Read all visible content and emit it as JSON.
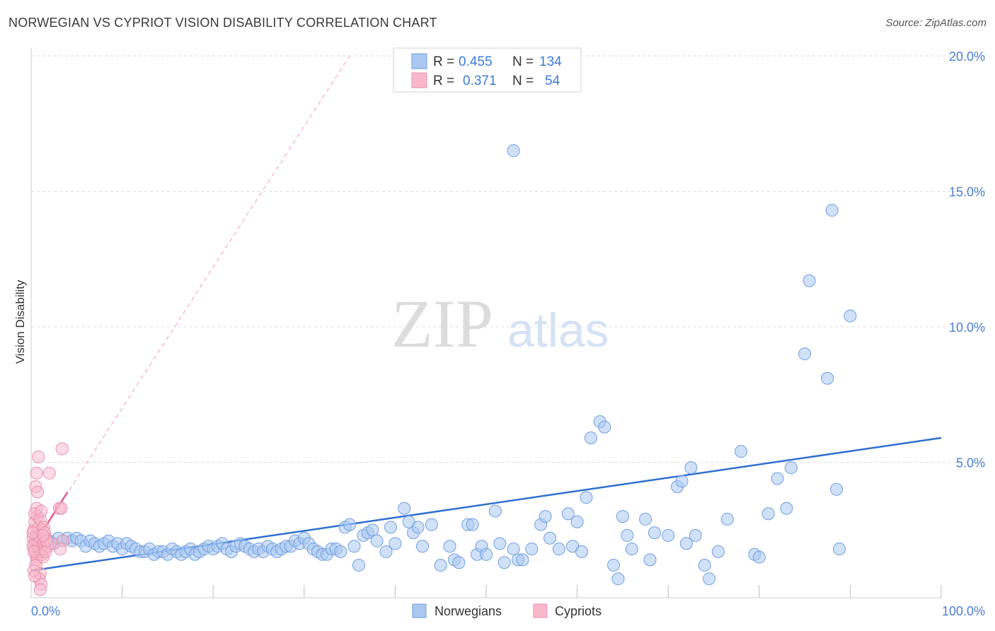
{
  "title": "NORWEGIAN VS CYPRIOT VISION DISABILITY CORRELATION CHART",
  "source": "Source: ZipAtlas.com",
  "watermark": {
    "part1": "ZIP",
    "part2": "atlas"
  },
  "colors": {
    "blue": "#4a84d8",
    "blue_fill": "#aac8f0",
    "pink": "#e8709a",
    "pink_fill": "#f7b8cc",
    "grid": "#dddddd",
    "tick_text": "#4a7fd4"
  },
  "legend": {
    "rows": [
      {
        "r_label": "R =",
        "r_value": "0.455",
        "n_label": "N =",
        "n_value": "134",
        "series": "Norwegians"
      },
      {
        "r_label": "R =",
        "r_value": "0.371",
        "n_label": "N =",
        "n_value": "54",
        "series": "Cypriots"
      }
    ]
  },
  "chart_data": {
    "type": "scatter",
    "title": "NORWEGIAN VS CYPRIOT VISION DISABILITY CORRELATION CHART",
    "xlabel": "",
    "ylabel": "Vision Disability",
    "xlim": [
      0,
      100
    ],
    "ylim": [
      0,
      20
    ],
    "x_tick_labels": [
      "0.0%",
      "100.0%"
    ],
    "y_ticks": [
      5,
      10,
      15,
      20
    ],
    "y_tick_labels": [
      "5.0%",
      "10.0%",
      "15.0%",
      "20.0%"
    ],
    "legend_position": "bottom",
    "series": [
      {
        "name": "Norwegians",
        "color": "#4a84d8",
        "trend": {
          "x": [
            0,
            100
          ],
          "y": [
            1.0,
            5.9
          ]
        },
        "points": [
          [
            0.6,
            2.3
          ],
          [
            0.8,
            2.2
          ],
          [
            1.2,
            2.1
          ],
          [
            1.5,
            2.0
          ],
          [
            2.0,
            2.1
          ],
          [
            2.5,
            2.0
          ],
          [
            3.0,
            2.2
          ],
          [
            3.5,
            2.1
          ],
          [
            4.0,
            2.2
          ],
          [
            4.5,
            2.1
          ],
          [
            5.0,
            2.2
          ],
          [
            5.5,
            2.1
          ],
          [
            6.0,
            1.9
          ],
          [
            6.5,
            2.1
          ],
          [
            7.0,
            2.0
          ],
          [
            7.5,
            1.9
          ],
          [
            8.0,
            2.0
          ],
          [
            8.5,
            2.1
          ],
          [
            9.0,
            1.9
          ],
          [
            9.5,
            2.0
          ],
          [
            10.0,
            1.8
          ],
          [
            10.5,
            2.0
          ],
          [
            11.0,
            1.9
          ],
          [
            11.5,
            1.8
          ],
          [
            12.0,
            1.7
          ],
          [
            12.5,
            1.7
          ],
          [
            13.0,
            1.8
          ],
          [
            13.5,
            1.6
          ],
          [
            14.0,
            1.7
          ],
          [
            14.5,
            1.7
          ],
          [
            15.0,
            1.6
          ],
          [
            15.5,
            1.8
          ],
          [
            16.0,
            1.7
          ],
          [
            16.5,
            1.6
          ],
          [
            17.0,
            1.7
          ],
          [
            17.5,
            1.8
          ],
          [
            18.0,
            1.6
          ],
          [
            18.5,
            1.7
          ],
          [
            19.0,
            1.8
          ],
          [
            19.5,
            1.9
          ],
          [
            20.0,
            1.8
          ],
          [
            20.5,
            1.9
          ],
          [
            21.0,
            2.0
          ],
          [
            21.5,
            1.8
          ],
          [
            22.0,
            1.7
          ],
          [
            22.5,
            1.9
          ],
          [
            23.0,
            2.0
          ],
          [
            23.5,
            1.9
          ],
          [
            24.0,
            1.8
          ],
          [
            24.5,
            1.7
          ],
          [
            25.0,
            1.8
          ],
          [
            25.5,
            1.7
          ],
          [
            26.0,
            1.9
          ],
          [
            26.5,
            1.8
          ],
          [
            27.0,
            1.7
          ],
          [
            27.5,
            1.8
          ],
          [
            28.0,
            1.9
          ],
          [
            28.5,
            1.9
          ],
          [
            29.0,
            2.1
          ],
          [
            29.5,
            2.0
          ],
          [
            30.0,
            2.2
          ],
          [
            30.5,
            2.0
          ],
          [
            31.0,
            1.8
          ],
          [
            31.5,
            1.7
          ],
          [
            32.0,
            1.6
          ],
          [
            32.5,
            1.6
          ],
          [
            33.0,
            1.8
          ],
          [
            33.5,
            1.8
          ],
          [
            34.0,
            1.7
          ],
          [
            34.5,
            2.6
          ],
          [
            35.0,
            2.7
          ],
          [
            35.5,
            1.9
          ],
          [
            36.0,
            1.2
          ],
          [
            36.5,
            2.3
          ],
          [
            37.0,
            2.4
          ],
          [
            37.5,
            2.5
          ],
          [
            38.0,
            2.1
          ],
          [
            39.0,
            1.7
          ],
          [
            39.5,
            2.6
          ],
          [
            40.0,
            2.0
          ],
          [
            41.0,
            3.3
          ],
          [
            41.5,
            2.8
          ],
          [
            42.0,
            2.4
          ],
          [
            42.5,
            2.6
          ],
          [
            43.0,
            1.9
          ],
          [
            44.0,
            2.7
          ],
          [
            45.0,
            1.2
          ],
          [
            46.0,
            1.9
          ],
          [
            46.5,
            1.4
          ],
          [
            47.0,
            1.3
          ],
          [
            48.0,
            2.7
          ],
          [
            48.5,
            2.7
          ],
          [
            49.0,
            1.6
          ],
          [
            49.5,
            1.9
          ],
          [
            50.0,
            1.6
          ],
          [
            51.0,
            3.2
          ],
          [
            51.5,
            2.0
          ],
          [
            52.0,
            1.3
          ],
          [
            53.0,
            1.8
          ],
          [
            53.5,
            1.4
          ],
          [
            54.0,
            1.4
          ],
          [
            55.0,
            1.8
          ],
          [
            56.0,
            2.7
          ],
          [
            56.5,
            3.0
          ],
          [
            57.0,
            2.2
          ],
          [
            58.0,
            1.8
          ],
          [
            59.0,
            3.1
          ],
          [
            59.5,
            1.9
          ],
          [
            60.0,
            2.8
          ],
          [
            60.5,
            1.7
          ],
          [
            61.0,
            3.7
          ],
          [
            61.5,
            5.9
          ],
          [
            62.5,
            6.5
          ],
          [
            63.0,
            6.3
          ],
          [
            64.0,
            1.2
          ],
          [
            64.5,
            0.7
          ],
          [
            65.0,
            3.0
          ],
          [
            65.5,
            2.3
          ],
          [
            66.0,
            1.8
          ],
          [
            67.5,
            2.9
          ],
          [
            68.0,
            1.4
          ],
          [
            68.5,
            2.4
          ],
          [
            70.0,
            2.3
          ],
          [
            71.0,
            4.1
          ],
          [
            71.5,
            4.3
          ],
          [
            72.0,
            2.0
          ],
          [
            72.5,
            4.8
          ],
          [
            73.0,
            2.3
          ],
          [
            74.0,
            1.2
          ],
          [
            74.5,
            0.7
          ],
          [
            75.5,
            1.7
          ],
          [
            76.5,
            2.9
          ],
          [
            78.0,
            5.4
          ],
          [
            79.5,
            1.6
          ],
          [
            80.0,
            1.5
          ],
          [
            81.0,
            3.1
          ],
          [
            82.0,
            4.4
          ],
          [
            83.0,
            3.3
          ],
          [
            83.5,
            4.8
          ],
          [
            85.0,
            9.0
          ],
          [
            85.5,
            11.7
          ],
          [
            87.5,
            8.1
          ],
          [
            88.0,
            14.3
          ],
          [
            88.5,
            4.0
          ],
          [
            88.8,
            1.8
          ],
          [
            90.0,
            10.4
          ],
          [
            53.0,
            16.5
          ]
        ]
      },
      {
        "name": "Cypriots",
        "color": "#e8709a",
        "trend": {
          "x": [
            0,
            4
          ],
          "y": [
            1.8,
            3.9
          ]
        },
        "trend_extended": {
          "x": [
            0,
            35
          ],
          "y": [
            1.8,
            20.0
          ]
        },
        "points": [
          [
            0.3,
            2.0
          ],
          [
            0.4,
            1.8
          ],
          [
            0.5,
            2.2
          ],
          [
            0.6,
            1.5
          ],
          [
            0.3,
            2.5
          ],
          [
            0.7,
            1.9
          ],
          [
            0.5,
            1.6
          ],
          [
            0.4,
            2.8
          ],
          [
            0.8,
            2.0
          ],
          [
            0.6,
            1.4
          ],
          [
            0.9,
            2.3
          ],
          [
            0.5,
            1.2
          ],
          [
            0.7,
            3.0
          ],
          [
            0.8,
            2.6
          ],
          [
            0.6,
            3.3
          ],
          [
            0.4,
            3.1
          ],
          [
            0.9,
            1.7
          ],
          [
            0.5,
            4.1
          ],
          [
            0.7,
            3.9
          ],
          [
            0.6,
            4.6
          ],
          [
            0.8,
            5.2
          ],
          [
            1.0,
            2.1
          ],
          [
            1.1,
            1.8
          ],
          [
            1.2,
            2.5
          ],
          [
            1.0,
            2.9
          ],
          [
            1.2,
            1.6
          ],
          [
            1.1,
            3.2
          ],
          [
            1.3,
            1.5
          ],
          [
            1.4,
            2.0
          ],
          [
            1.5,
            1.8
          ],
          [
            1.0,
            0.9
          ],
          [
            0.9,
            0.7
          ],
          [
            1.1,
            0.5
          ],
          [
            1.0,
            0.3
          ],
          [
            0.3,
            1.0
          ],
          [
            0.4,
            0.8
          ],
          [
            0.2,
            2.2
          ],
          [
            0.2,
            1.9
          ],
          [
            0.3,
            1.7
          ],
          [
            0.2,
            2.4
          ],
          [
            1.6,
            2.2
          ],
          [
            1.8,
            1.9
          ],
          [
            2.0,
            4.6
          ],
          [
            2.2,
            2.0
          ],
          [
            3.1,
            3.3
          ],
          [
            3.3,
            3.3
          ],
          [
            3.4,
            5.5
          ],
          [
            3.5,
            2.1
          ],
          [
            3.2,
            1.8
          ],
          [
            1.4,
            2.6
          ],
          [
            1.5,
            2.4
          ],
          [
            1.6,
            1.7
          ],
          [
            1.7,
            2.1
          ],
          [
            1.3,
            2.3
          ]
        ]
      }
    ]
  }
}
